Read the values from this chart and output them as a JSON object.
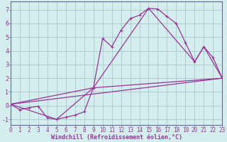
{
  "bg_color": "#d4eeed",
  "grid_color": "#aacfcf",
  "line_color": "#993399",
  "axis_line_color": "#666699",
  "xlabel": "Windchill (Refroidissement éolien,°C)",
  "xlim": [
    0,
    23
  ],
  "ylim": [
    -1.4,
    7.6
  ],
  "yticks": [
    -1,
    0,
    1,
    2,
    3,
    4,
    5,
    6,
    7
  ],
  "xticks": [
    0,
    1,
    2,
    3,
    4,
    5,
    6,
    7,
    8,
    9,
    10,
    11,
    12,
    13,
    14,
    15,
    16,
    17,
    18,
    19,
    20,
    21,
    22,
    23
  ],
  "curve1_x": [
    0,
    1,
    2,
    3,
    4,
    5,
    6,
    7,
    8,
    9,
    10,
    11,
    12,
    13,
    14,
    15,
    16,
    17,
    18,
    19,
    20,
    21,
    22,
    23
  ],
  "curve1_y": [
    0.1,
    -0.3,
    -0.15,
    -0.05,
    -0.9,
    -1.0,
    -0.85,
    -0.7,
    -0.45,
    1.3,
    4.9,
    4.3,
    5.5,
    6.35,
    6.6,
    7.1,
    7.05,
    6.5,
    6.0,
    4.6,
    3.2,
    4.3,
    3.5,
    2.0
  ],
  "curve2_x": [
    0,
    23
  ],
  "curve2_y": [
    0.1,
    2.0
  ],
  "curve3_x": [
    0,
    9,
    23
  ],
  "curve3_y": [
    0.1,
    1.3,
    2.0
  ],
  "curve4_x": [
    0,
    5,
    9,
    15,
    20,
    21,
    23
  ],
  "curve4_y": [
    0.1,
    -1.0,
    1.3,
    7.1,
    3.2,
    4.3,
    2.0
  ],
  "tick_fontsize": 5.5,
  "xlabel_fontsize": 6.0
}
